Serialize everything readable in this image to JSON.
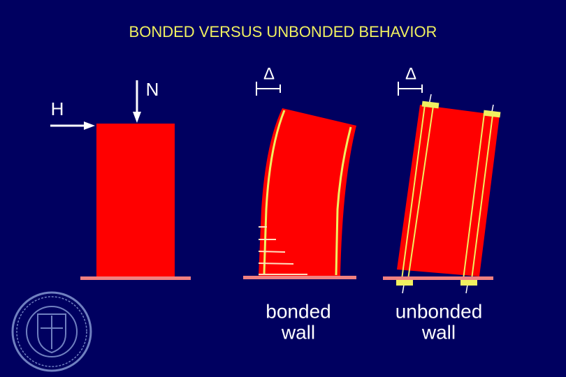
{
  "title": "BONDED VERSUS UNBONDED BEHAVIOR",
  "labels": {
    "h": "H",
    "n": "N",
    "delta_bonded": "Δ",
    "delta_unbonded": "Δ"
  },
  "captions": [
    {
      "lines": [
        "bonded",
        "wall"
      ]
    },
    {
      "lines": [
        "unbonded",
        "wall"
      ]
    }
  ]
}
